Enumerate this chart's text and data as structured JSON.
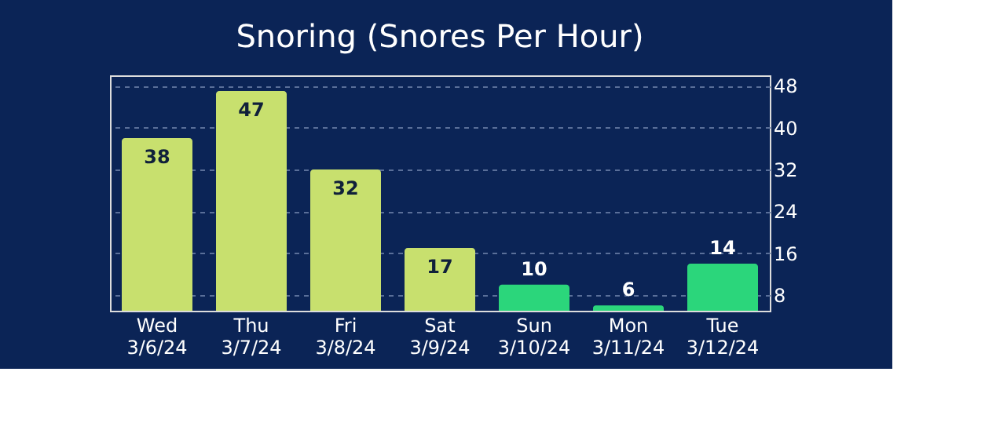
{
  "chart_data": {
    "type": "bar",
    "title": "Snoring (Snores Per Hour)",
    "categories": [
      "Wed 3/6/24",
      "Thu 3/7/24",
      "Fri 3/8/24",
      "Sat 3/9/24",
      "Sun 3/10/24",
      "Mon 3/11/24",
      "Tue 3/12/24"
    ],
    "values": [
      38,
      47,
      32,
      17,
      10,
      6,
      14
    ],
    "colors": [
      "#c8e06e",
      "#c8e06e",
      "#c8e06e",
      "#c8e06e",
      "#2bd67b",
      "#2bd67b",
      "#2bd67b"
    ],
    "ylim": [
      5,
      50
    ],
    "yticks": [
      8,
      16,
      24,
      32,
      40,
      48
    ],
    "grid": "y",
    "data_labels": true
  }
}
